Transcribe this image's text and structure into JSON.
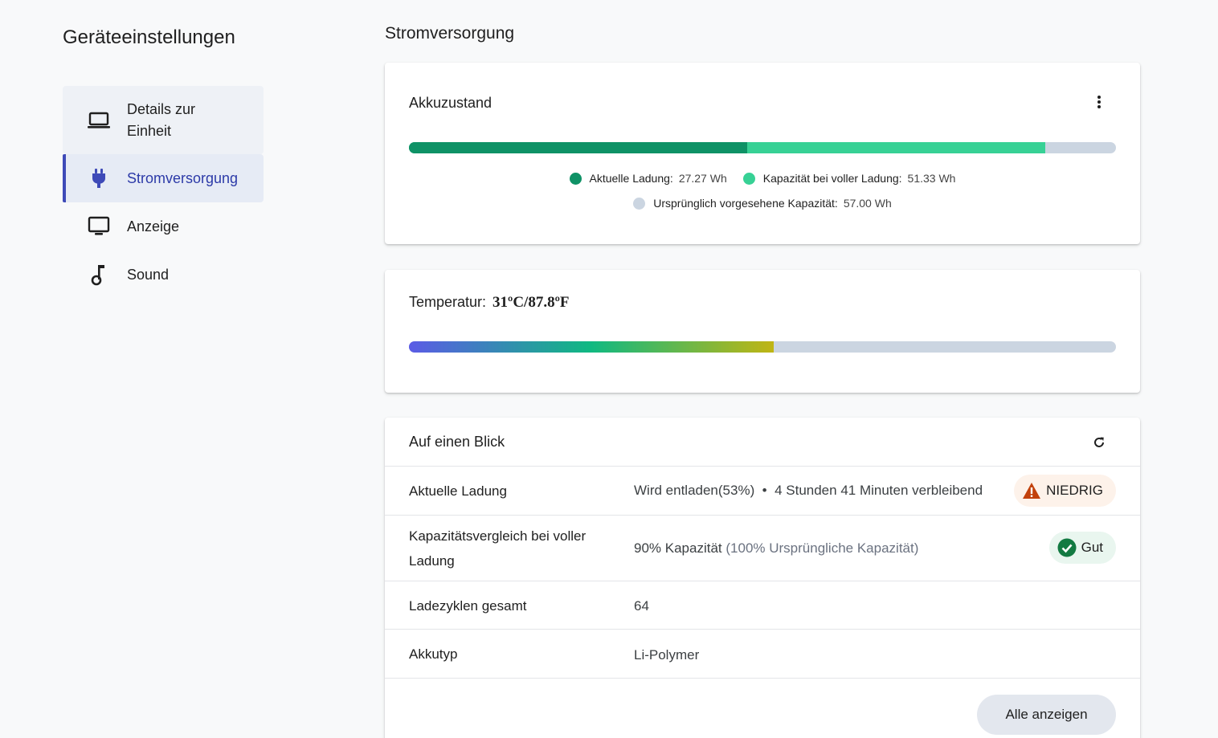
{
  "sidebar": {
    "title": "Geräteeinstellungen",
    "items": [
      {
        "label": "Details zur Einheit",
        "icon": "laptop-icon"
      },
      {
        "label": "Stromversorgung",
        "icon": "power-plug-icon",
        "active": true
      },
      {
        "label": "Anzeige",
        "icon": "monitor-icon"
      },
      {
        "label": "Sound",
        "icon": "music-note-icon"
      }
    ]
  },
  "main": {
    "title": "Stromversorgung",
    "battery_card": {
      "title": "Akkuzustand",
      "menu_icon": "more-vert-icon",
      "bar": {
        "current_fraction": 0.4784,
        "full_fraction": 0.9005,
        "colors": {
          "current": "#0f9266",
          "full": "#37d195",
          "design": "#cbd5e1"
        }
      },
      "legend": [
        {
          "label": "Aktuelle Ladung:",
          "value": "27.27 Wh",
          "color": "#0f9266"
        },
        {
          "label": "Kapazität bei voller Ladung:",
          "value": "51.33 Wh",
          "color": "#37d195"
        },
        {
          "label": "Ursprünglich vorgesehene Kapazität:",
          "value": "57.00 Wh",
          "color": "#cbd5e1"
        }
      ]
    },
    "temperature_card": {
      "label": "Temperatur:",
      "value": "31ºC/87.8ºF",
      "fill_fraction": 0.516,
      "gradient": [
        "#5b5be6",
        "#10b981",
        "#c0b514"
      ]
    },
    "overview_card": {
      "title": "Auf einen Blick",
      "refresh_icon": "refresh-icon",
      "rows": [
        {
          "label": "Aktuelle Ladung",
          "value": "Wird entladen(53%)  •  4 Stunden 41 Minuten verbleibend",
          "badge": "NIEDRIG",
          "badge_icon": "warning-icon"
        },
        {
          "label": "Kapazitätsvergleich bei voller Ladung",
          "value": "90% Kapazität",
          "value_muted": "(100% Ursprüngliche Kapazität)",
          "badge": "Gut",
          "badge_icon": "check-circle-icon"
        },
        {
          "label": "Ladezyklen gesamt",
          "value": "64"
        },
        {
          "label": "Akkutyp",
          "value": "Li-Polymer"
        }
      ],
      "show_all_label": "Alle anzeigen"
    }
  }
}
